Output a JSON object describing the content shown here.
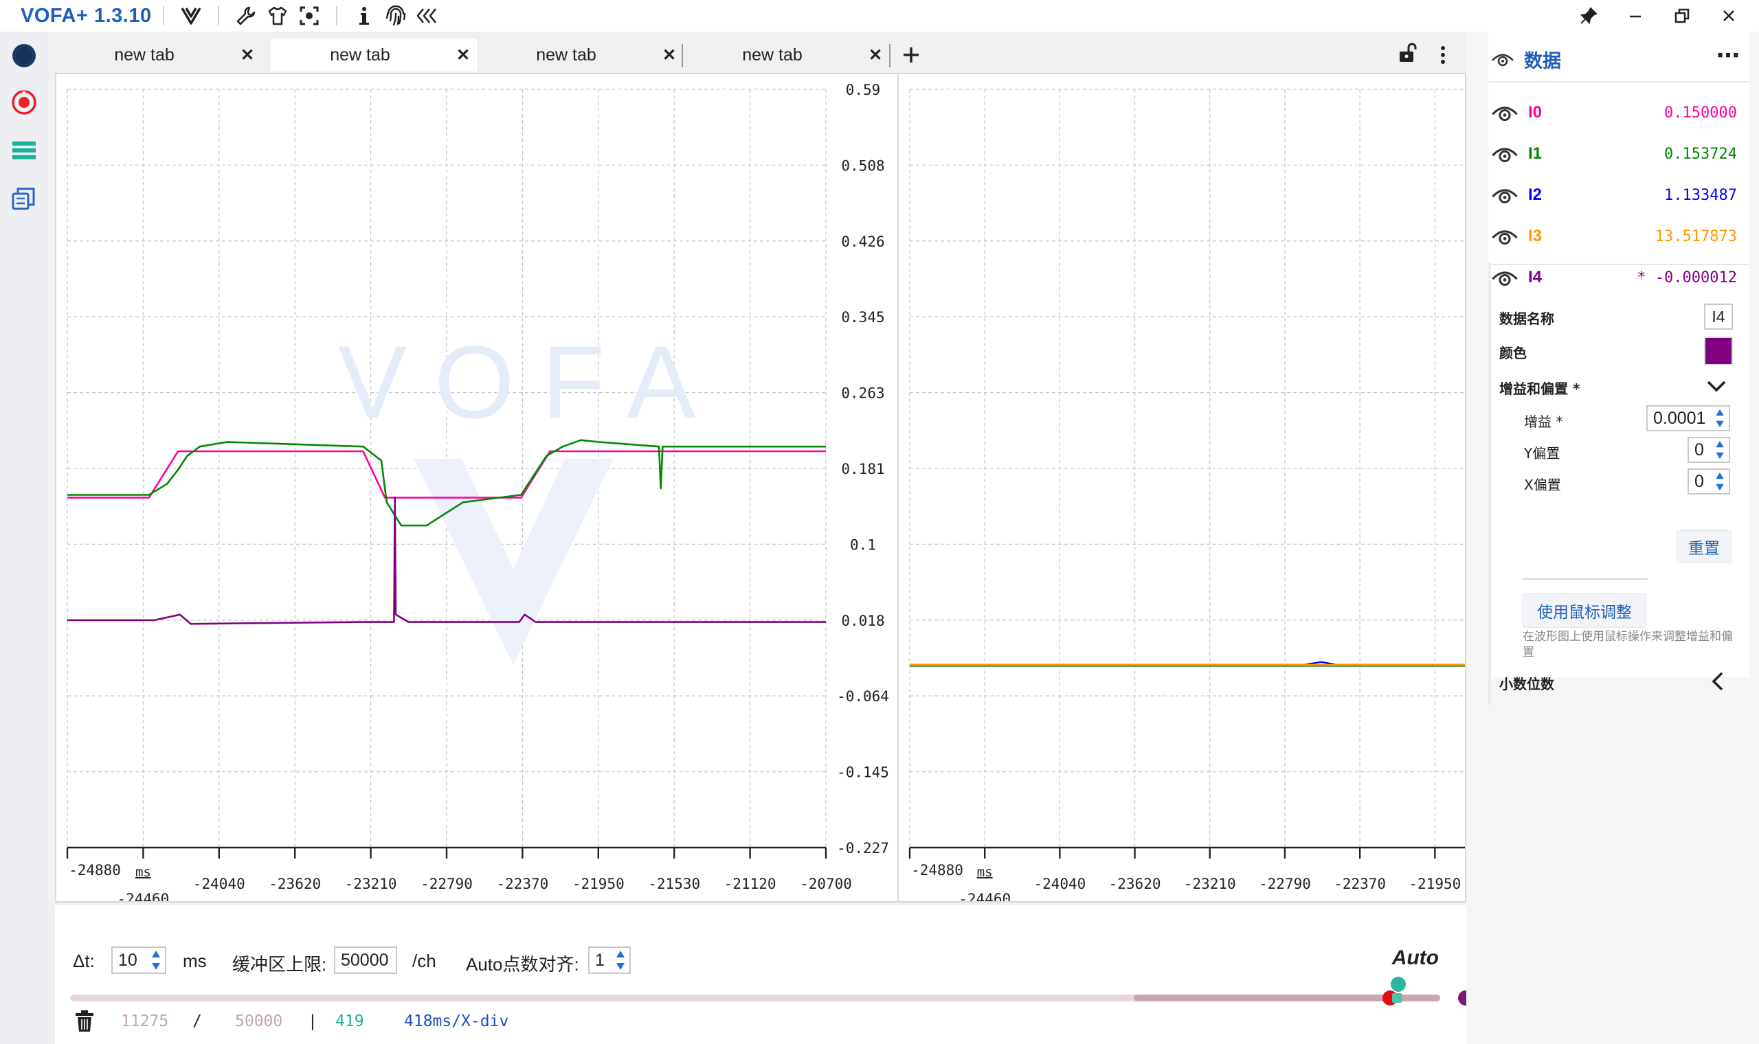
{
  "app": {
    "title": "VOFA+ 1.3.10"
  },
  "tabs": [
    {
      "label": "new tab",
      "active": false
    },
    {
      "label": "new tab",
      "active": true
    },
    {
      "label": "new tab",
      "active": false
    },
    {
      "label": "new tab",
      "active": false
    }
  ],
  "plot_left": {
    "watermark": "VOFA",
    "y_ticks": [
      "0.59",
      "0.508",
      "0.426",
      "0.345",
      "0.263",
      "0.181",
      "0.1",
      "0.018",
      "-0.064",
      "-0.145",
      "-0.227"
    ],
    "x_ticks_top": [
      "-24880",
      "-24040",
      "-23620",
      "-23210",
      "-22790",
      "-22370",
      "-21950",
      "-21530",
      "-21120",
      "-20700"
    ],
    "x_tick_second": "-24460",
    "x_unit": "ms"
  },
  "plot_right": {
    "x_ticks_top": [
      "-24880",
      "-24040",
      "-23620",
      "-23210",
      "-22790",
      "-22370",
      "-21950"
    ],
    "x_tick_second": "-24460",
    "x_unit": "ms"
  },
  "chart_data": [
    {
      "type": "line",
      "title": "",
      "xlabel": "ms",
      "ylabel": "",
      "xlim": [
        -24880,
        -20700
      ],
      "ylim": [
        -0.227,
        0.59
      ],
      "grid": true,
      "series": [
        {
          "name": "I0",
          "color": "#ff0099",
          "x": [
            -24880,
            -24430,
            -24270,
            -23250,
            -23130,
            -22380,
            -22220,
            -20700
          ],
          "y": [
            0.15,
            0.15,
            0.2,
            0.2,
            0.15,
            0.15,
            0.2,
            0.2
          ]
        },
        {
          "name": "I1",
          "color": "#008800",
          "x": [
            -24880,
            -24430,
            -24330,
            -24270,
            -24220,
            -24150,
            -24000,
            -23250,
            -23150,
            -23120,
            -23040,
            -22900,
            -22700,
            -22380,
            -22240,
            -22150,
            -22050,
            -21950,
            -21620,
            -21610,
            -21600,
            -20700
          ],
          "y": [
            0.153,
            0.153,
            0.165,
            0.18,
            0.195,
            0.205,
            0.21,
            0.205,
            0.19,
            0.145,
            0.12,
            0.12,
            0.145,
            0.153,
            0.195,
            0.205,
            0.212,
            0.21,
            0.205,
            0.16,
            0.205,
            0.205
          ]
        },
        {
          "name": "I4",
          "color": "#800080",
          "x": [
            -24880,
            -24400,
            -24260,
            -24200,
            -23250,
            -23080,
            -23075,
            -23070,
            -23000,
            -22390,
            -22360,
            -22300,
            -20700
          ],
          "y": [
            0.018,
            0.018,
            0.024,
            0.014,
            0.016,
            0.016,
            0.15,
            0.024,
            0.016,
            0.016,
            0.024,
            0.016,
            0.016
          ]
        }
      ]
    },
    {
      "type": "line",
      "title": "",
      "xlabel": "ms",
      "ylabel": "",
      "xlim": [
        -24880,
        -21750
      ],
      "grid": true,
      "series": [
        {
          "name": "I2",
          "color": "#0000ff",
          "x": [
            -24880,
            -22660,
            -22560,
            -22470,
            -21750
          ],
          "y": [
            0.0,
            0.0,
            0.3,
            0.0,
            0.0
          ]
        },
        {
          "name": "I3",
          "color": "#ff9900",
          "x": [
            -24880,
            -21750
          ],
          "y": [
            0.0,
            0.0
          ]
        }
      ]
    }
  ],
  "controls": {
    "dt_label": "Δt:",
    "dt_value": "10",
    "dt_unit": "ms",
    "buffer_label": "缓冲区上限:",
    "buffer_value": "50000",
    "buffer_unit": "/ch",
    "auto_align_label": "Auto点数对齐:",
    "auto_align_value": "1",
    "auto_label": "Auto",
    "slider_window_fraction": 0.225
  },
  "status": {
    "count": "11275",
    "slash": "/",
    "limit": "50000",
    "sep": "|",
    "points": "419",
    "xdiv": "418ms/X-div"
  },
  "panel": {
    "title": "数据",
    "channels": [
      {
        "name": "I0",
        "value": "0.150000",
        "color": "#ff0099"
      },
      {
        "name": "I1",
        "value": "0.153724",
        "color": "#008800"
      },
      {
        "name": "I2",
        "value": "1.133487",
        "color": "#0000ff"
      },
      {
        "name": "I3",
        "value": "13.517873",
        "color": "#ff9900"
      },
      {
        "name": "I4",
        "value": "* -0.000012",
        "color": "#800080"
      }
    ],
    "props": {
      "name_label": "数据名称",
      "name_value": "I4",
      "color_label": "颜色",
      "color_value": "#800080",
      "gain_offset_label": "增益和偏置 *",
      "gain_label": "增益 *",
      "gain_value": "0.0001",
      "y_offset_label": "Y偏置",
      "y_offset_value": "0",
      "x_offset_label": "X偏置",
      "x_offset_value": "0",
      "reset_label": "重置",
      "mouse_adjust_label": "使用鼠标调整",
      "mouse_hint": "在波形图上使用鼠标操作来调整增益和偏置",
      "decimals_label": "小数位数"
    }
  }
}
